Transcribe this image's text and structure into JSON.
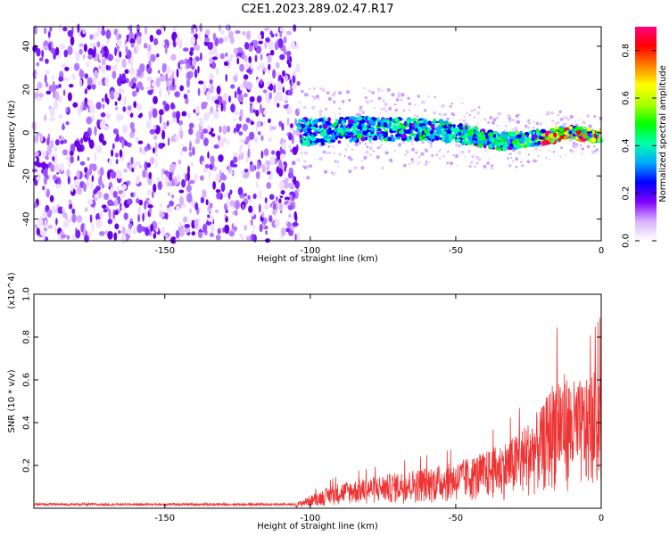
{
  "title": "C2E1.2023.289.02.47.R17",
  "chart_data": [
    {
      "type": "heatmap",
      "xlabel": "Height of straight line (km)",
      "ylabel": "Frequency (Hz)",
      "xlim": [
        -195,
        0
      ],
      "ylim": [
        -50,
        49
      ],
      "xticks": [
        -150,
        -100,
        -50,
        0
      ],
      "xtick_labels": [
        "-150",
        "-100",
        "-50",
        "0"
      ],
      "yticks": [
        -40,
        -20,
        0,
        20,
        40
      ],
      "ytick_labels": [
        "-40",
        "-20",
        "0",
        "20",
        "40"
      ],
      "colorbar": {
        "label": "Normalized spectral amplitude",
        "range": [
          0,
          0.9
        ],
        "ticks": [
          0,
          0.2,
          0.4,
          0.6,
          0.8
        ],
        "tick_labels": [
          "0.0",
          "0.2",
          "0.4",
          "0.6",
          "0.8"
        ],
        "colormap": [
          "#ffffff",
          "#d9b3ff",
          "#8000ff",
          "#0000ff",
          "#00aaff",
          "#00ffaa",
          "#00ff00",
          "#aaff00",
          "#ffff00",
          "#ff8000",
          "#ff0000",
          "#ff0080"
        ]
      },
      "regions": [
        {
          "name": "noise",
          "x": [
            -195,
            -104
          ],
          "freq_range": [
            -50,
            49
          ],
          "amplitude": 0.05
        },
        {
          "name": "signal",
          "x": [
            -104,
            0
          ],
          "center_freq": [
            [
              -104,
              0
            ],
            [
              -80,
              2
            ],
            [
              -55,
              1
            ],
            [
              -35,
              -4
            ],
            [
              -25,
              -3
            ],
            [
              -10,
              0
            ],
            [
              0,
              -2
            ]
          ],
          "peak_amplitude": 0.9
        }
      ],
      "grid": false
    },
    {
      "type": "line",
      "xlabel": "Height of straight line (km)",
      "ylabel": "SNR (10 * v/v)",
      "multiplier": "(x10^4)",
      "xlim": [
        -195,
        0
      ],
      "ylim": [
        0,
        1.0
      ],
      "xticks": [
        -150,
        -100,
        -50,
        0
      ],
      "xtick_labels": [
        "-150",
        "-100",
        "-50",
        "0"
      ],
      "yticks": [
        0.2,
        0.4,
        0.6,
        0.8,
        1.0
      ],
      "ytick_labels": [
        "0.2",
        "0.4",
        "0.6",
        "0.8",
        "1.0"
      ],
      "color": "#ee3333",
      "series": [
        {
          "x": [
            -195,
            -150,
            -105,
            -100,
            -90,
            -80,
            -70,
            -60,
            -50,
            -40,
            -30,
            -20,
            -15,
            -10,
            -5,
            0
          ],
          "y": [
            0.02,
            0.02,
            0.02,
            0.05,
            0.1,
            0.12,
            0.14,
            0.16,
            0.18,
            0.22,
            0.28,
            0.4,
            0.55,
            0.5,
            0.5,
            0.58
          ]
        }
      ],
      "grid": false
    }
  ]
}
